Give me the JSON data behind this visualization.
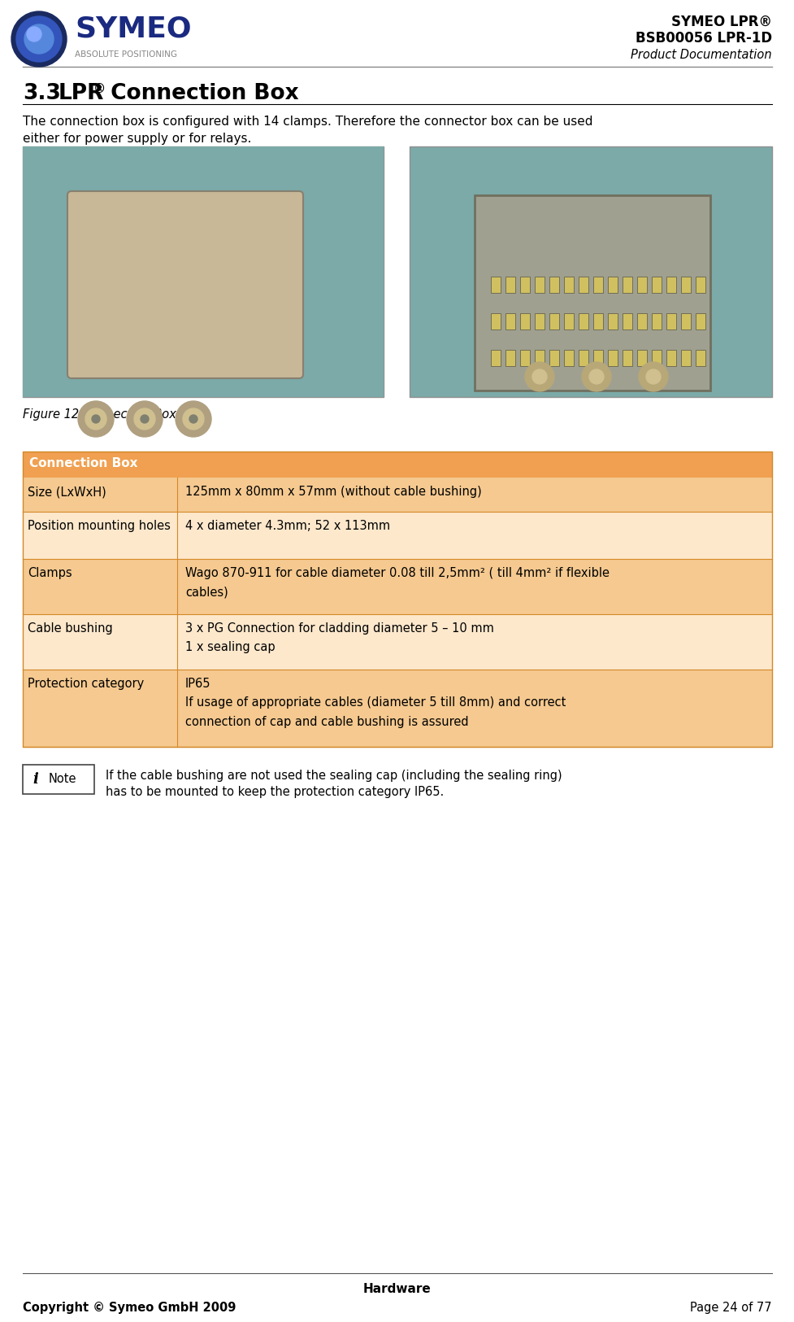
{
  "page_bg": "#ffffff",
  "header_right_text": [
    "SYMEO LPR®",
    "BSB00056 LPR-1D",
    "Product Documentation"
  ],
  "section_title_num": "3.3",
  "section_title_text": " Connection Box",
  "section_title_lpr": "LPR",
  "intro_text_line1": "The connection box is configured with 14 clamps. Therefore the connector box can be used",
  "intro_text_line2": "either for power supply or for relays.",
  "figure_caption": "Figure 12 Connection Box",
  "table_header_bg": "#F0A050",
  "table_header_text": "Connection Box",
  "table_header_text_color": "#ffffff",
  "table_row_bg_dark": "#F5C990",
  "table_row_bg_light": "#FDE8CC",
  "table_border_color": "#D48828",
  "table_rows": [
    {
      "label": "Size (LxWxH)",
      "value": "125mm x 80mm x 57mm (without cable bushing)",
      "bg": "dark"
    },
    {
      "label": "Position mounting holes",
      "value": "4 x diameter 4.3mm; 52 x 113mm",
      "bg": "light"
    },
    {
      "label": "Clamps",
      "value": "Wago 870-911 for cable diameter 0.08 till 2,5mm² ( till 4mm² if flexible\ncables)",
      "bg": "dark"
    },
    {
      "label": "Cable bushing",
      "value": "3 x PG Connection for cladding diameter 5 – 10 mm\n1 x sealing cap",
      "bg": "light"
    },
    {
      "label": "Protection category",
      "value": "IP65\nIf usage of appropriate cables (diameter 5 till 8mm) and correct\nconnection of cap and cable bushing is assured",
      "bg": "dark"
    }
  ],
  "note_text_line1": "If the cable bushing are not used the sealing cap (including the sealing ring)",
  "note_text_line2": "has to be mounted to keep the protection category IP65.",
  "footer_center": "Hardware",
  "footer_left": "Copyright © Symeo GmbH 2009",
  "footer_right": "Page 24 of 77",
  "label_color": "#000000",
  "value_color": "#000000",
  "img1_bg": "#8BA8A0",
  "img2_bg": "#8BA8A8",
  "img_border": "#909090"
}
